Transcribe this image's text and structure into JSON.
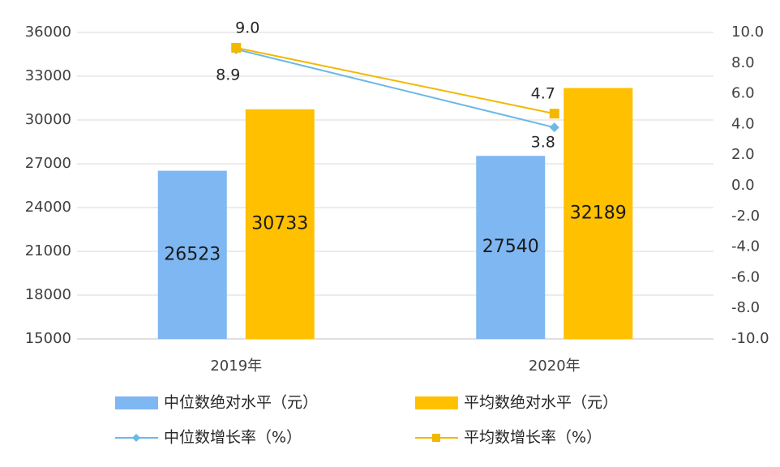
{
  "chart_data": {
    "type": "combo",
    "categories": [
      "2019年",
      "2020年"
    ],
    "series": [
      {
        "name": "中位数绝对水平（元）",
        "type": "bar",
        "color": "#7fb7f2",
        "values": [
          26523,
          27540
        ]
      },
      {
        "name": "平均数绝对水平（元）",
        "type": "bar",
        "color": "#ffc000",
        "values": [
          30733,
          32189
        ]
      },
      {
        "name": "中位数增长率（%）",
        "type": "line",
        "axis": "y2",
        "marker": "diamond",
        "color": "#6cb8e6",
        "values": [
          8.9,
          3.8
        ],
        "value_labels": [
          "8.9",
          "3.8"
        ]
      },
      {
        "name": "平均数增长率（%）",
        "type": "line",
        "axis": "y2",
        "marker": "square",
        "color": "#f2b800",
        "values": [
          9.0,
          4.7
        ],
        "value_labels": [
          "9.0",
          "4.7"
        ]
      }
    ],
    "ylim": [
      15000,
      36000
    ],
    "yticks": [
      15000,
      18000,
      21000,
      24000,
      27000,
      30000,
      33000,
      36000
    ],
    "y2lim": [
      -10,
      10
    ],
    "y2ticks": [
      {
        "value": -10,
        "label": "-10.0"
      },
      {
        "value": -8,
        "label": "-8.0"
      },
      {
        "value": -6,
        "label": "-6.0"
      },
      {
        "value": -4,
        "label": "-4.0"
      },
      {
        "value": -2,
        "label": "-2.0"
      },
      {
        "value": 0,
        "label": "0.0"
      },
      {
        "value": 2,
        "label": "2.0"
      },
      {
        "value": 4,
        "label": "4.0"
      },
      {
        "value": 6,
        "label": "6.0"
      },
      {
        "value": 8,
        "label": "8.0"
      },
      {
        "value": 10,
        "label": "10.0"
      }
    ],
    "grid": true
  }
}
